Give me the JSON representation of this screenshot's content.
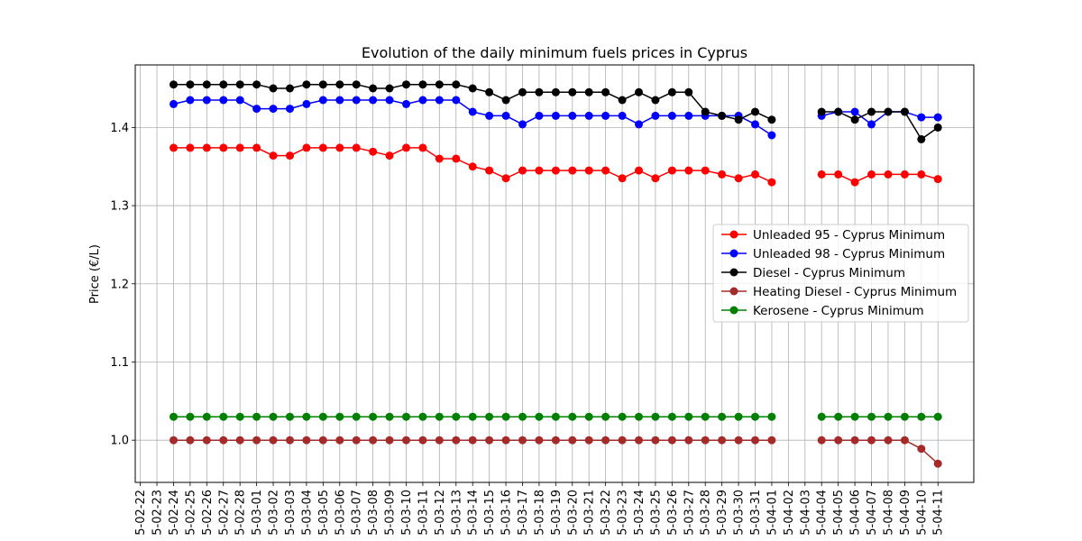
{
  "chart_data": {
    "type": "line",
    "title": "Evolution of the daily minimum fuels prices in Cyprus",
    "xlabel": "",
    "ylabel": "Price (€/L)",
    "ylim": [
      0.946,
      1.48
    ],
    "yticks": [
      1.0,
      1.1,
      1.2,
      1.3,
      1.4
    ],
    "ytick_labels": [
      "1.0",
      "1.1",
      "1.2",
      "1.3",
      "1.4"
    ],
    "grid": true,
    "legend_position": "center-right",
    "categories": [
      "5-02-22",
      "5-02-23",
      "5-02-24",
      "5-02-25",
      "5-02-26",
      "5-02-27",
      "5-02-28",
      "5-03-01",
      "5-03-02",
      "5-03-03",
      "5-03-04",
      "5-03-05",
      "5-03-06",
      "5-03-07",
      "5-03-08",
      "5-03-09",
      "5-03-10",
      "5-03-11",
      "5-03-12",
      "5-03-13",
      "5-03-14",
      "5-03-15",
      "5-03-16",
      "5-03-17",
      "5-03-18",
      "5-03-19",
      "5-03-20",
      "5-03-21",
      "5-03-22",
      "5-03-23",
      "5-03-24",
      "5-03-25",
      "5-03-26",
      "5-03-27",
      "5-03-28",
      "5-03-29",
      "5-03-30",
      "5-03-31",
      "5-04-01",
      "5-04-02",
      "5-04-03",
      "5-04-04",
      "5-04-05",
      "5-04-06",
      "5-04-07",
      "5-04-08",
      "5-04-09",
      "5-04-10",
      "5-04-11"
    ],
    "series": [
      {
        "name": "Unleaded 95 - Cyprus Minimum",
        "color": "#ff0000",
        "values": [
          null,
          null,
          1.374,
          1.374,
          1.374,
          1.374,
          1.374,
          1.374,
          1.364,
          1.364,
          1.374,
          1.374,
          1.374,
          1.374,
          1.369,
          1.364,
          1.374,
          1.374,
          1.36,
          1.36,
          1.35,
          1.345,
          1.335,
          1.345,
          1.345,
          1.345,
          1.345,
          1.345,
          1.345,
          1.335,
          1.345,
          1.335,
          1.345,
          1.345,
          1.345,
          1.34,
          1.335,
          1.34,
          1.33,
          null,
          null,
          1.34,
          1.34,
          1.33,
          1.34,
          1.34,
          1.34,
          1.34,
          1.334
        ]
      },
      {
        "name": "Unleaded 98 - Cyprus Minimum",
        "color": "#0000ff",
        "values": [
          null,
          null,
          1.43,
          1.435,
          1.435,
          1.435,
          1.435,
          1.424,
          1.424,
          1.424,
          1.43,
          1.435,
          1.435,
          1.435,
          1.435,
          1.435,
          1.43,
          1.435,
          1.435,
          1.435,
          1.42,
          1.415,
          1.415,
          1.404,
          1.415,
          1.415,
          1.415,
          1.415,
          1.415,
          1.415,
          1.404,
          1.415,
          1.415,
          1.415,
          1.415,
          1.415,
          1.415,
          1.404,
          1.39,
          null,
          null,
          1.415,
          1.42,
          1.42,
          1.404,
          1.42,
          1.42,
          1.413,
          1.413
        ]
      },
      {
        "name": "Diesel - Cyprus Minimum",
        "color": "#000000",
        "values": [
          null,
          null,
          1.455,
          1.455,
          1.455,
          1.455,
          1.455,
          1.455,
          1.45,
          1.45,
          1.455,
          1.455,
          1.455,
          1.455,
          1.45,
          1.45,
          1.455,
          1.455,
          1.455,
          1.455,
          1.45,
          1.445,
          1.435,
          1.445,
          1.445,
          1.445,
          1.445,
          1.445,
          1.445,
          1.435,
          1.445,
          1.435,
          1.445,
          1.445,
          1.42,
          1.415,
          1.41,
          1.42,
          1.41,
          null,
          null,
          1.42,
          1.42,
          1.41,
          1.42,
          1.42,
          1.42,
          1.385,
          1.4
        ]
      },
      {
        "name": "Heating Diesel - Cyprus Minimum",
        "color": "#a52a2a",
        "values": [
          null,
          null,
          1.0,
          1.0,
          1.0,
          1.0,
          1.0,
          1.0,
          1.0,
          1.0,
          1.0,
          1.0,
          1.0,
          1.0,
          1.0,
          1.0,
          1.0,
          1.0,
          1.0,
          1.0,
          1.0,
          1.0,
          1.0,
          1.0,
          1.0,
          1.0,
          1.0,
          1.0,
          1.0,
          1.0,
          1.0,
          1.0,
          1.0,
          1.0,
          1.0,
          1.0,
          1.0,
          1.0,
          1.0,
          null,
          null,
          1.0,
          1.0,
          1.0,
          1.0,
          1.0,
          1.0,
          0.989,
          0.97
        ]
      },
      {
        "name": "Kerosene - Cyprus Minimum",
        "color": "#008000",
        "values": [
          null,
          null,
          1.03,
          1.03,
          1.03,
          1.03,
          1.03,
          1.03,
          1.03,
          1.03,
          1.03,
          1.03,
          1.03,
          1.03,
          1.03,
          1.03,
          1.03,
          1.03,
          1.03,
          1.03,
          1.03,
          1.03,
          1.03,
          1.03,
          1.03,
          1.03,
          1.03,
          1.03,
          1.03,
          1.03,
          1.03,
          1.03,
          1.03,
          1.03,
          1.03,
          1.03,
          1.03,
          1.03,
          1.03,
          null,
          null,
          1.03,
          1.03,
          1.03,
          1.03,
          1.03,
          1.03,
          1.03,
          1.03
        ]
      }
    ]
  }
}
